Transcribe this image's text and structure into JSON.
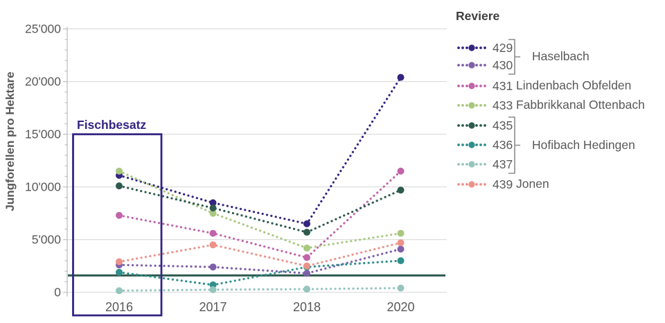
{
  "chart_data": {
    "type": "line",
    "line_style": "dotted",
    "categories": [
      "2016",
      "2017",
      "2018",
      "2020"
    ],
    "series": [
      {
        "id": "429",
        "group": "Haselbach",
        "color": "#332580",
        "values": [
          11100,
          8500,
          6500,
          20400
        ]
      },
      {
        "id": "430",
        "group": "Haselbach",
        "color": "#7e60a9",
        "values": [
          2600,
          2400,
          1800,
          4100
        ]
      },
      {
        "id": "431",
        "group": "Lindenbach Obfelden",
        "color": "#c164ab",
        "values": [
          7300,
          5600,
          3300,
          11500
        ]
      },
      {
        "id": "433",
        "group": "Fabbrikkanal Ottenbach",
        "color": "#a8c87e",
        "values": [
          11500,
          7500,
          4200,
          5600
        ]
      },
      {
        "id": "435",
        "group": "Hofibach Hedingen",
        "color": "#2e5a4e",
        "values": [
          10100,
          8000,
          5700,
          9700
        ]
      },
      {
        "id": "436",
        "group": "Hofibach Hedingen",
        "color": "#2f8f8c",
        "values": [
          1900,
          700,
          2400,
          3000
        ]
      },
      {
        "id": "437",
        "group": "Hofibach Hedingen",
        "color": "#95c5bd",
        "values": [
          150,
          250,
          300,
          400
        ]
      },
      {
        "id": "439",
        "group": "Jonen",
        "color": "#ec9288",
        "values": [
          2900,
          4500,
          2500,
          4700
        ]
      }
    ],
    "ylabel": "Jungforellen pro Hektare",
    "xlabel": "",
    "ylim": [
      0,
      25000
    ],
    "ytick_values": [
      0,
      5000,
      10000,
      15000,
      20000,
      25000
    ],
    "ytick_labels": [
      "0",
      "5'000",
      "10'000",
      "15'000",
      "20'000",
      "25'000"
    ],
    "grid": true,
    "reference_line": {
      "value": 1600,
      "color": "#2e594e"
    },
    "annotation_box": {
      "label": "Fischbesatz",
      "category": "2016",
      "top_value": 15000,
      "color": "#352582"
    },
    "legend": {
      "title": "Reviere",
      "position": "right",
      "rows": [
        {
          "id": "429",
          "name": ""
        },
        {
          "id": "430",
          "name": ""
        },
        {
          "id": "431",
          "name": "Lindenbach Obfelden"
        },
        {
          "id": "433",
          "name": "Fabbrikkanal Ottenbach"
        },
        {
          "id": "435",
          "name": ""
        },
        {
          "id": "436",
          "name": ""
        },
        {
          "id": "437",
          "name": ""
        },
        {
          "id": "439",
          "name": "Jonen"
        }
      ],
      "groups": [
        {
          "label": "Haselbach",
          "rows": [
            0,
            1
          ]
        },
        {
          "label": "Hofibach Hedingen",
          "rows": [
            4,
            5,
            6
          ]
        }
      ]
    },
    "colors": {
      "grid": "#d9d9d9",
      "axis": "#bfbfbf",
      "tick_text": "#595959"
    }
  }
}
